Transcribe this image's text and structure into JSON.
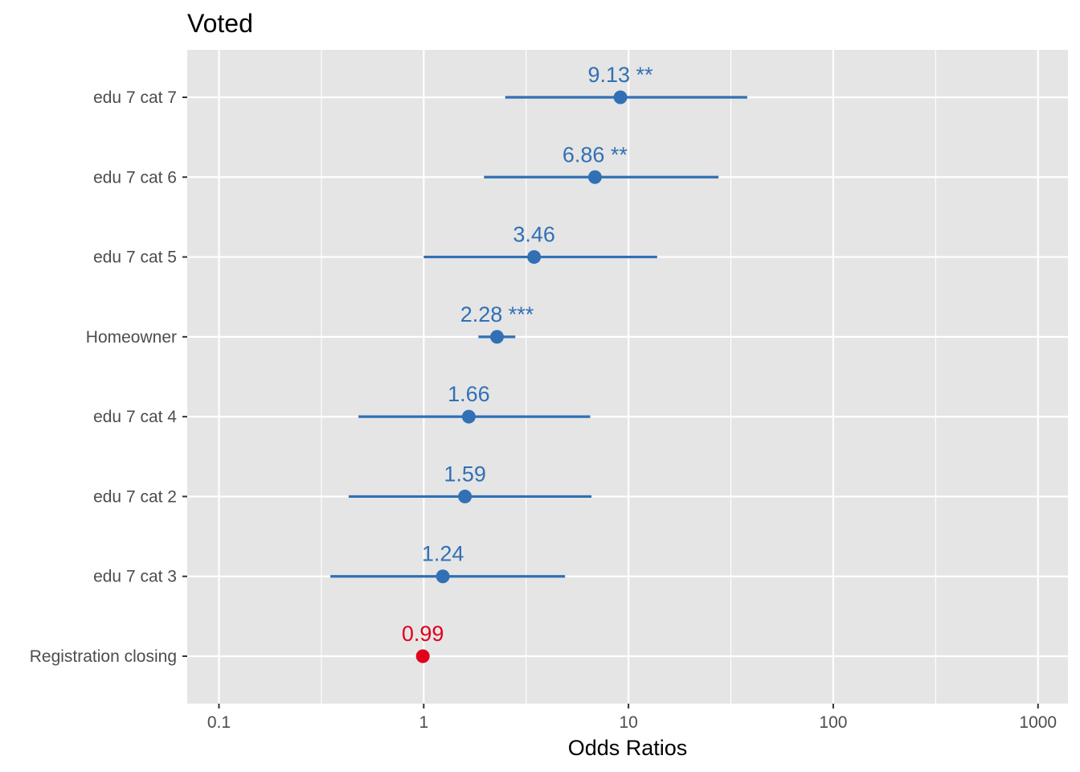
{
  "chart_data": {
    "type": "scatter",
    "subtype": "forest-plot",
    "title": "Voted",
    "xlabel": "Odds Ratios",
    "ylabel": "",
    "xscale": "log10",
    "xlim": [
      0.07,
      1400
    ],
    "x_ticks": [
      0.1,
      1,
      10,
      100,
      1000
    ],
    "x_tick_labels": [
      "0.1",
      "1",
      "10",
      "100",
      "1000"
    ],
    "grid": true,
    "colors": {
      "positive": "#3170b5",
      "negative": "#e0001b",
      "panel": "#e5e5e5",
      "grid": "#ffffff"
    },
    "points": [
      {
        "term": "edu 7 cat 7",
        "estimate": 9.13,
        "ci_low": 2.5,
        "ci_high": 38,
        "label": "9.13 **",
        "direction": "positive"
      },
      {
        "term": "edu 7 cat 6",
        "estimate": 6.86,
        "ci_low": 1.97,
        "ci_high": 27.5,
        "label": "6.86 **",
        "direction": "positive"
      },
      {
        "term": "edu 7 cat 5",
        "estimate": 3.46,
        "ci_low": 1.0,
        "ci_high": 13.8,
        "label": "3.46",
        "direction": "positive"
      },
      {
        "term": "Homeowner",
        "estimate": 2.28,
        "ci_low": 1.85,
        "ci_high": 2.8,
        "label": "2.28 ***",
        "direction": "positive"
      },
      {
        "term": "edu 7 cat 4",
        "estimate": 1.66,
        "ci_low": 0.48,
        "ci_high": 6.5,
        "label": "1.66",
        "direction": "positive"
      },
      {
        "term": "edu 7 cat 2",
        "estimate": 1.59,
        "ci_low": 0.43,
        "ci_high": 6.6,
        "label": "1.59",
        "direction": "positive"
      },
      {
        "term": "edu 7 cat 3",
        "estimate": 1.24,
        "ci_low": 0.35,
        "ci_high": 4.9,
        "label": "1.24",
        "direction": "positive"
      },
      {
        "term": "Registration closing",
        "estimate": 0.99,
        "ci_low": 0.975,
        "ci_high": 1.005,
        "label": "0.99",
        "direction": "negative"
      }
    ]
  }
}
